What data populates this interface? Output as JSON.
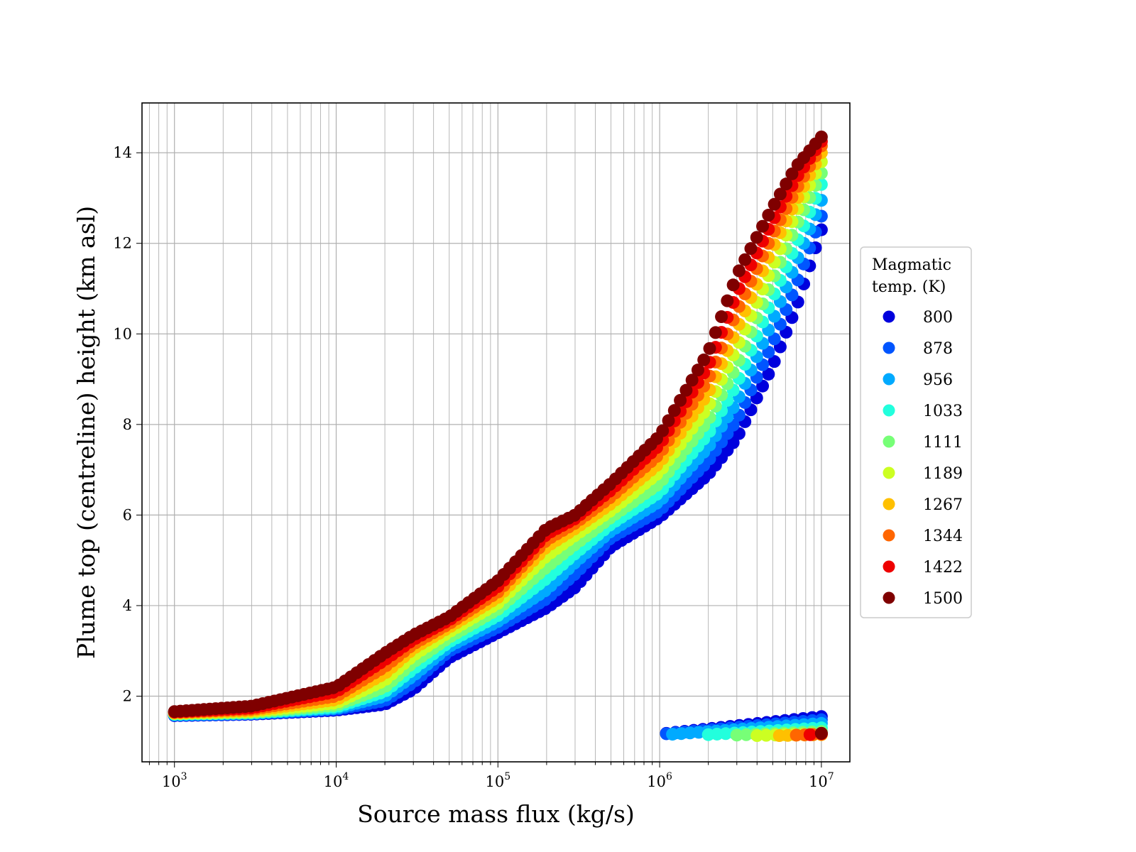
{
  "chart_data": {
    "type": "scatter",
    "xlabel": "Source mass flux (kg/s)",
    "ylabel": "Plume top (centreline) height (km asl)",
    "xscale": "log",
    "xlim": [
      630,
      15000000
    ],
    "ylim": [
      0.55,
      15.1
    ],
    "x_ticks": [
      {
        "base": "10",
        "exp": "3",
        "value": 1000
      },
      {
        "base": "10",
        "exp": "4",
        "value": 10000
      },
      {
        "base": "10",
        "exp": "5",
        "value": 100000
      },
      {
        "base": "10",
        "exp": "6",
        "value": 1000000
      },
      {
        "base": "10",
        "exp": "7",
        "value": 10000000
      }
    ],
    "y_ticks": [
      {
        "label": "2",
        "value": 2
      },
      {
        "label": "4",
        "value": 4
      },
      {
        "label": "6",
        "value": 6
      },
      {
        "label": "8",
        "value": 8
      },
      {
        "label": "10",
        "value": 10
      },
      {
        "label": "12",
        "value": 12
      },
      {
        "label": "14",
        "value": 14
      }
    ],
    "grid": true,
    "legend": {
      "title_lines": [
        "Magmatic",
        "temp. (K)"
      ],
      "placement": "right-outside"
    },
    "series": [
      {
        "name": "800",
        "color": "#0000dd",
        "curve": [
          [
            1000,
            1.57
          ],
          [
            3000,
            1.6
          ],
          [
            10000,
            1.69
          ],
          [
            20000,
            1.82
          ],
          [
            30000,
            2.15
          ],
          [
            50000,
            2.85
          ],
          [
            100000,
            3.4
          ],
          [
            200000,
            3.95
          ],
          [
            300000,
            4.4
          ],
          [
            500000,
            5.3
          ],
          [
            1000000,
            5.95
          ],
          [
            2000000,
            6.9
          ],
          [
            3000000,
            7.7
          ],
          [
            5000000,
            9.3
          ],
          [
            7000000,
            10.6
          ],
          [
            10000000,
            12.3
          ]
        ],
        "low_branch": {
          "x_start": 1100000,
          "x_end": 10000000,
          "y_start": 1.18,
          "y_end": 1.55
        }
      },
      {
        "name": "878",
        "color": "#0055ff",
        "curve": [
          [
            1000,
            1.58
          ],
          [
            3000,
            1.61
          ],
          [
            10000,
            1.71
          ],
          [
            20000,
            1.9
          ],
          [
            30000,
            2.3
          ],
          [
            50000,
            3.0
          ],
          [
            100000,
            3.52
          ],
          [
            200000,
            4.15
          ],
          [
            300000,
            4.7
          ],
          [
            500000,
            5.5
          ],
          [
            1000000,
            6.1
          ],
          [
            2000000,
            7.2
          ],
          [
            3000000,
            8.1
          ],
          [
            5000000,
            9.8
          ],
          [
            7000000,
            11.1
          ],
          [
            10000000,
            12.6
          ]
        ],
        "low_branch": {
          "x_start": 1100000,
          "x_end": 10000000,
          "y_start": 1.17,
          "y_end": 1.48
        }
      },
      {
        "name": "956",
        "color": "#00aaff",
        "curve": [
          [
            1000,
            1.59
          ],
          [
            3000,
            1.62
          ],
          [
            10000,
            1.73
          ],
          [
            20000,
            2.0
          ],
          [
            30000,
            2.45
          ],
          [
            50000,
            3.1
          ],
          [
            100000,
            3.65
          ],
          [
            200000,
            4.35
          ],
          [
            300000,
            4.95
          ],
          [
            500000,
            5.65
          ],
          [
            1000000,
            6.3
          ],
          [
            2000000,
            7.5
          ],
          [
            3000000,
            8.5
          ],
          [
            5000000,
            10.3
          ],
          [
            7000000,
            11.6
          ],
          [
            10000000,
            12.95
          ]
        ],
        "low_branch": {
          "x_start": 1200000,
          "x_end": 10000000,
          "y_start": 1.16,
          "y_end": 1.4
        }
      },
      {
        "name": "1033",
        "color": "#22ffdd",
        "curve": [
          [
            1000,
            1.6
          ],
          [
            3000,
            1.63
          ],
          [
            10000,
            1.76
          ],
          [
            20000,
            2.1
          ],
          [
            30000,
            2.6
          ],
          [
            50000,
            3.2
          ],
          [
            100000,
            3.78
          ],
          [
            200000,
            4.6
          ],
          [
            300000,
            5.15
          ],
          [
            500000,
            5.8
          ],
          [
            1000000,
            6.5
          ],
          [
            2000000,
            7.8
          ],
          [
            3000000,
            8.9
          ],
          [
            5000000,
            10.8
          ],
          [
            7000000,
            12.0
          ],
          [
            10000000,
            13.3
          ]
        ],
        "low_branch": {
          "x_start": 2000000,
          "x_end": 10000000,
          "y_start": 1.15,
          "y_end": 1.3
        }
      },
      {
        "name": "1111",
        "color": "#77ff77",
        "curve": [
          [
            1000,
            1.61
          ],
          [
            3000,
            1.64
          ],
          [
            10000,
            1.8
          ],
          [
            20000,
            2.2
          ],
          [
            30000,
            2.75
          ],
          [
            50000,
            3.3
          ],
          [
            100000,
            3.92
          ],
          [
            200000,
            4.85
          ],
          [
            300000,
            5.35
          ],
          [
            500000,
            5.95
          ],
          [
            1000000,
            6.7
          ],
          [
            2000000,
            8.1
          ],
          [
            3000000,
            9.3
          ],
          [
            5000000,
            11.2
          ],
          [
            7000000,
            12.4
          ],
          [
            10000000,
            13.55
          ]
        ],
        "low_branch": {
          "x_start": 3000000,
          "x_end": 10000000,
          "y_start": 1.14,
          "y_end": 1.22
        }
      },
      {
        "name": "1189",
        "color": "#ccff22",
        "curve": [
          [
            1000,
            1.62
          ],
          [
            3000,
            1.66
          ],
          [
            10000,
            1.85
          ],
          [
            20000,
            2.35
          ],
          [
            30000,
            2.9
          ],
          [
            50000,
            3.42
          ],
          [
            100000,
            4.05
          ],
          [
            200000,
            5.1
          ],
          [
            300000,
            5.55
          ],
          [
            500000,
            6.1
          ],
          [
            1000000,
            6.95
          ],
          [
            2000000,
            8.4
          ],
          [
            3000000,
            9.7
          ],
          [
            5000000,
            11.5
          ],
          [
            7000000,
            12.7
          ],
          [
            10000000,
            13.8
          ]
        ],
        "low_branch": {
          "x_start": 4000000,
          "x_end": 10000000,
          "y_start": 1.13,
          "y_end": 1.17
        }
      },
      {
        "name": "1267",
        "color": "#ffc000",
        "curve": [
          [
            1000,
            1.63
          ],
          [
            3000,
            1.68
          ],
          [
            10000,
            1.92
          ],
          [
            20000,
            2.5
          ],
          [
            30000,
            3.05
          ],
          [
            50000,
            3.52
          ],
          [
            100000,
            4.18
          ],
          [
            200000,
            5.3
          ],
          [
            300000,
            5.7
          ],
          [
            500000,
            6.25
          ],
          [
            1000000,
            7.15
          ],
          [
            2000000,
            8.7
          ],
          [
            3000000,
            10.1
          ],
          [
            5000000,
            11.9
          ],
          [
            7000000,
            12.95
          ],
          [
            10000000,
            14.0
          ]
        ],
        "low_branch": {
          "x_start": 5500000,
          "x_end": 10000000,
          "y_start": 1.13,
          "y_end": 1.15
        }
      },
      {
        "name": "1344",
        "color": "#ff6600",
        "curve": [
          [
            1000,
            1.64
          ],
          [
            3000,
            1.71
          ],
          [
            10000,
            2.0
          ],
          [
            20000,
            2.65
          ],
          [
            30000,
            3.15
          ],
          [
            50000,
            3.6
          ],
          [
            100000,
            4.3
          ],
          [
            200000,
            5.45
          ],
          [
            300000,
            5.82
          ],
          [
            500000,
            6.4
          ],
          [
            1000000,
            7.35
          ],
          [
            2000000,
            9.0
          ],
          [
            3000000,
            10.5
          ],
          [
            5000000,
            12.2
          ],
          [
            7000000,
            13.2
          ],
          [
            10000000,
            14.15
          ]
        ],
        "low_branch": {
          "x_start": 7000000,
          "x_end": 10000000,
          "y_start": 1.14,
          "y_end": 1.16
        }
      },
      {
        "name": "1422",
        "color": "#ee0000",
        "curve": [
          [
            1000,
            1.65
          ],
          [
            3000,
            1.74
          ],
          [
            10000,
            2.1
          ],
          [
            20000,
            2.8
          ],
          [
            30000,
            3.25
          ],
          [
            50000,
            3.68
          ],
          [
            100000,
            4.42
          ],
          [
            200000,
            5.58
          ],
          [
            300000,
            5.92
          ],
          [
            500000,
            6.55
          ],
          [
            1000000,
            7.55
          ],
          [
            2000000,
            9.3
          ],
          [
            3000000,
            10.9
          ],
          [
            5000000,
            12.5
          ],
          [
            7000000,
            13.45
          ],
          [
            10000000,
            14.25
          ]
        ],
        "low_branch": {
          "x_start": 8500000,
          "x_end": 10000000,
          "y_start": 1.15,
          "y_end": 1.17
        }
      },
      {
        "name": "1500",
        "color": "#7f0000",
        "curve": [
          [
            1000,
            1.66
          ],
          [
            3000,
            1.78
          ],
          [
            10000,
            2.2
          ],
          [
            20000,
            2.95
          ],
          [
            30000,
            3.35
          ],
          [
            50000,
            3.75
          ],
          [
            100000,
            4.55
          ],
          [
            200000,
            5.7
          ],
          [
            300000,
            6.0
          ],
          [
            500000,
            6.7
          ],
          [
            1000000,
            7.75
          ],
          [
            2000000,
            9.6
          ],
          [
            3000000,
            11.3
          ],
          [
            5000000,
            12.8
          ],
          [
            7000000,
            13.7
          ],
          [
            10000000,
            14.35
          ]
        ],
        "low_branch": {
          "x_start": 10000000,
          "x_end": 10000000,
          "y_start": 1.18,
          "y_end": 1.18
        }
      }
    ]
  }
}
